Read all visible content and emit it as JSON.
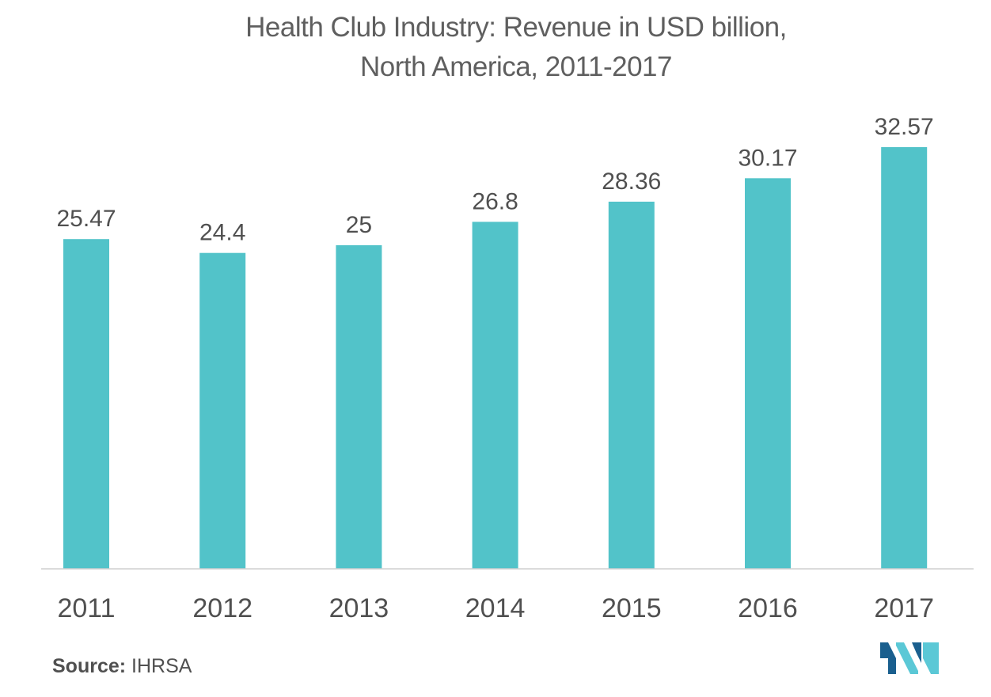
{
  "chart_data": {
    "type": "bar",
    "title_lines": [
      "Health Club Industry: Revenue in USD billion,",
      "North America, 2011-2017"
    ],
    "categories": [
      "2011",
      "2012",
      "2013",
      "2014",
      "2015",
      "2016",
      "2017"
    ],
    "values": [
      25.47,
      24.4,
      25,
      26.8,
      28.36,
      30.17,
      32.57
    ],
    "value_labels": [
      "25.47",
      "24.4",
      "25",
      "26.8",
      "28.36",
      "30.17",
      "32.57"
    ],
    "xlabel": "",
    "ylabel": "",
    "ylim": [
      0,
      32.57
    ],
    "grid": false,
    "legend": "none",
    "bar_color": "#52c3c9",
    "axis_color": "#cfcfcf"
  },
  "footer": {
    "source_label": "Source:",
    "source_value": "IHRSA"
  },
  "logo": {
    "icon": "mordor-intelligence-logo-icon",
    "colors": [
      "#1a5f8e",
      "#5bc8d6"
    ]
  }
}
